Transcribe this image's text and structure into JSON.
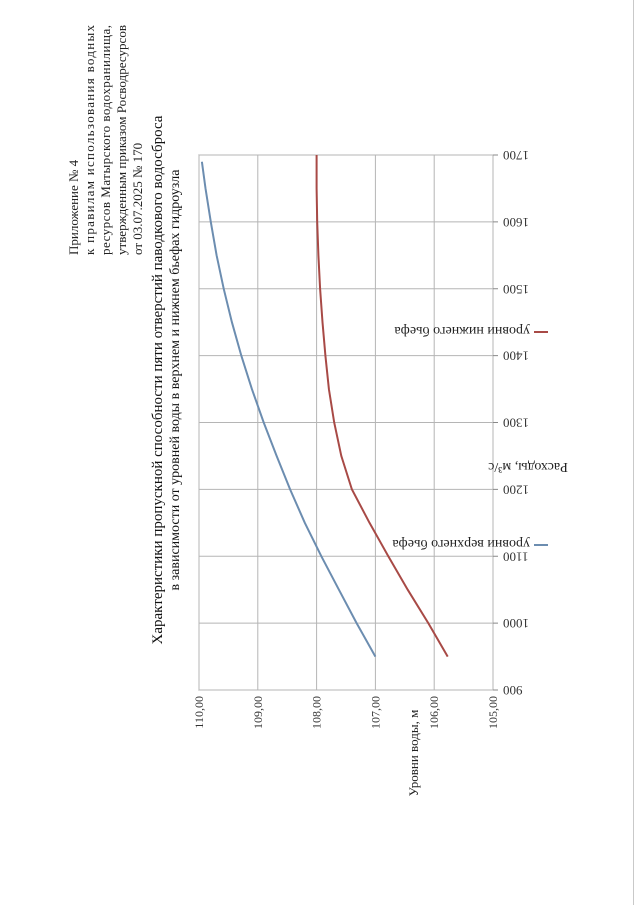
{
  "appendix": {
    "line1": "Приложение № 4",
    "line2": "к правилам использования водных",
    "line3": "ресурсов Матырского водохранилища,",
    "line4": "утвержденным приказом Росводресурсов",
    "line5": "от 03.07.2025 № 170"
  },
  "chart_data": {
    "type": "line",
    "title": "Характеристики пропускной способности пяти отверстий паводкового водосброса",
    "subtitle": "в зависимости от уровней воды в верхнем и нижнем бьефах гидроузла",
    "xlabel": "Расходы, м³/с",
    "ylabel": "Уровни воды, м",
    "xlim": [
      900,
      1700
    ],
    "ylim": [
      105,
      110
    ],
    "x_ticks": [
      900,
      1000,
      1100,
      1200,
      1300,
      1400,
      1500,
      1600,
      1700
    ],
    "y_ticks": [
      105,
      106,
      107,
      108,
      109,
      110
    ],
    "x_tick_labels": [
      "900",
      "1000",
      "1100",
      "1200",
      "1300",
      "1400",
      "1500",
      "1600",
      "1700"
    ],
    "y_tick_labels": [
      "105,00",
      "106,00",
      "107,00",
      "108,00",
      "109,00",
      "110,00"
    ],
    "grid": true,
    "legend_position": "bottom",
    "series": [
      {
        "name": "уровни верхнего бьефа",
        "color": "#6c8db0",
        "x": [
          950,
          1000,
          1050,
          1100,
          1150,
          1200,
          1250,
          1300,
          1350,
          1400,
          1450,
          1500,
          1550,
          1600,
          1650,
          1690
        ],
        "y": [
          107.0,
          107.32,
          107.62,
          107.92,
          108.2,
          108.45,
          108.68,
          108.9,
          109.1,
          109.28,
          109.44,
          109.58,
          109.7,
          109.8,
          109.89,
          109.95
        ]
      },
      {
        "name": "уровни нижнего бьефа",
        "color": "#a84a46",
        "x": [
          950,
          1000,
          1050,
          1100,
          1150,
          1200,
          1250,
          1300,
          1350,
          1400,
          1450,
          1500,
          1550,
          1600,
          1650,
          1690,
          1700
        ],
        "y": [
          105.77,
          106.1,
          106.45,
          106.78,
          107.1,
          107.4,
          107.58,
          107.7,
          107.79,
          107.85,
          107.9,
          107.94,
          107.97,
          107.99,
          108.0,
          108.0,
          108.0
        ]
      }
    ]
  }
}
